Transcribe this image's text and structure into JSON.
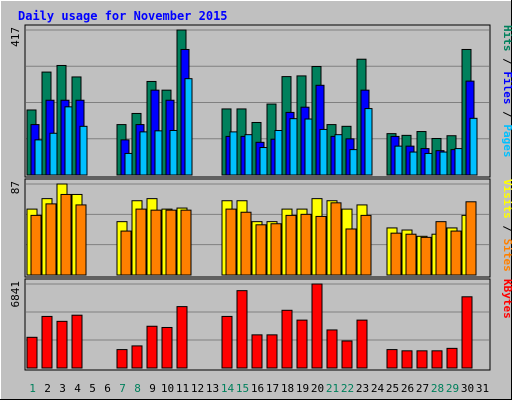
{
  "chart_data": {
    "type": "bar",
    "title": "Daily usage for November 2015",
    "categories": [
      "1",
      "2",
      "3",
      "4",
      "5",
      "6",
      "7",
      "8",
      "9",
      "10",
      "11",
      "12",
      "13",
      "14",
      "15",
      "16",
      "17",
      "18",
      "19",
      "20",
      "21",
      "22",
      "23",
      "24",
      "25",
      "26",
      "27",
      "28",
      "29",
      "30",
      "31"
    ],
    "weekend_days": [
      "1",
      "7",
      "8",
      "14",
      "15",
      "21",
      "22",
      "28",
      "29"
    ],
    "panels": [
      {
        "id": "pages-files-hits",
        "ymax_label": "417",
        "ymax": 417,
        "right_labels": [
          {
            "text": "Pages",
            "color": "#00c0ff"
          },
          {
            "text": " / ",
            "color": "#000000"
          },
          {
            "text": "Files",
            "color": "#0000ff"
          },
          {
            "text": " / ",
            "color": "#000000"
          },
          {
            "text": "Hits",
            "color": "#00805c"
          }
        ],
        "series": [
          {
            "name": "Hits",
            "color": "#00805c",
            "values": [
              187,
              296,
              315,
              282,
              0,
              0,
              145,
              177,
              269,
              244,
              417,
              0,
              0,
              190,
              190,
              151,
              204,
              283,
              285,
              312,
              145,
              140,
              333,
              0,
              119,
              114,
              125,
              105,
              113,
              361,
              0
            ]
          },
          {
            "name": "Files",
            "color": "#0000ff",
            "values": [
              145,
              215,
              215,
              215,
              0,
              0,
              101,
              145,
              244,
              215,
              361,
              0,
              0,
              111,
              111,
              94,
              103,
              180,
              195,
              258,
              111,
              104,
              244,
              0,
              111,
              83,
              76,
              70,
              73,
              270,
              0
            ]
          },
          {
            "name": "Pages",
            "color": "#00c0ff",
            "values": [
              101,
              120,
              196,
              140,
              0,
              0,
              62,
              124,
              127,
              128,
              277,
              0,
              0,
              124,
              116,
              79,
              128,
              162,
              161,
              131,
              116,
              73,
              191,
              0,
              83,
              66,
              62,
              66,
              76,
              163,
              0
            ]
          }
        ]
      },
      {
        "id": "visits-sites",
        "ymax_label": "87",
        "ymax": 87,
        "right_labels": [
          {
            "text": "Sites",
            "color": "#ff8000"
          },
          {
            "text": " / ",
            "color": "#000000"
          },
          {
            "text": "Visits",
            "color": "#ffff00"
          }
        ],
        "series": [
          {
            "name": "Visits",
            "color": "#ffff00",
            "values": [
              63,
              73,
              87,
              77,
              0,
              0,
              51,
              71,
              73,
              63,
              64,
              0,
              0,
              71,
              71,
              51,
              51,
              63,
              63,
              73,
              71,
              63,
              67,
              0,
              45,
              43,
              37,
              39,
              45,
              57,
              0
            ]
          },
          {
            "name": "Sites",
            "color": "#ff8000",
            "values": [
              57,
              68,
              77,
              67,
              0,
              0,
              42,
              63,
              62,
              62,
              62,
              0,
              0,
              63,
              60,
              48,
              49,
              57,
              58,
              56,
              69,
              44,
              57,
              0,
              40,
              39,
              36,
              51,
              42,
              70,
              0
            ]
          }
        ]
      },
      {
        "id": "kbytes",
        "ymax_label": "6841",
        "ymax": 6841,
        "right_labels": [
          {
            "text": "KBytes",
            "color": "#ff0000"
          }
        ],
        "series": [
          {
            "name": "KBytes",
            "color": "#ff0000",
            "values": [
              2500,
              4200,
              3800,
              4300,
              0,
              0,
              1500,
              1800,
              3400,
              3300,
              5000,
              0,
              0,
              4200,
              6300,
              2700,
              2700,
              4700,
              3900,
              6841,
              3100,
              2200,
              3900,
              0,
              1500,
              1400,
              1400,
              1400,
              1600,
              5800,
              0
            ]
          }
        ]
      }
    ]
  }
}
